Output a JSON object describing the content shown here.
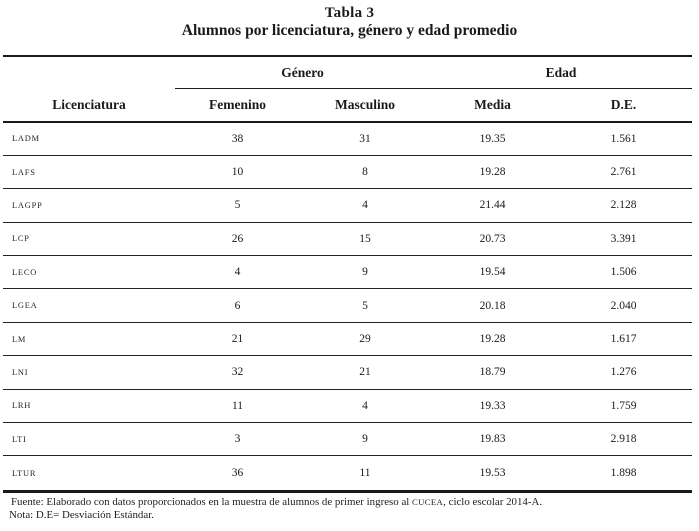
{
  "title": {
    "label": "Tabla 3",
    "subtitle": "Alumnos por licenciatura, género y edad promedio"
  },
  "table": {
    "group_headers": [
      "Género",
      "Edad"
    ],
    "columns": {
      "licenciatura": "Licenciatura",
      "femenino": "Femenino",
      "masculino": "Masculino",
      "media": "Media",
      "de": "D.E."
    },
    "rows": [
      {
        "licenciatura": "LADM",
        "femenino": "38",
        "masculino": "31",
        "media": "19.35",
        "de": "1.561"
      },
      {
        "licenciatura": "LAFS",
        "femenino": "10",
        "masculino": "8",
        "media": "19.28",
        "de": "2.761"
      },
      {
        "licenciatura": "LAGPP",
        "femenino": "5",
        "masculino": "4",
        "media": "21.44",
        "de": "2.128"
      },
      {
        "licenciatura": "LCP",
        "femenino": "26",
        "masculino": "15",
        "media": "20.73",
        "de": "3.391"
      },
      {
        "licenciatura": "LECO",
        "femenino": "4",
        "masculino": "9",
        "media": "19.54",
        "de": "1.506"
      },
      {
        "licenciatura": "LGEA",
        "femenino": "6",
        "masculino": "5",
        "media": "20.18",
        "de": "2.040"
      },
      {
        "licenciatura": "LM",
        "femenino": "21",
        "masculino": "29",
        "media": "19.28",
        "de": "1.617"
      },
      {
        "licenciatura": "LNI",
        "femenino": "32",
        "masculino": "21",
        "media": "18.79",
        "de": "1.276"
      },
      {
        "licenciatura": "LRH",
        "femenino": "11",
        "masculino": "4",
        "media": "19.33",
        "de": "1.759"
      },
      {
        "licenciatura": "LTI",
        "femenino": "3",
        "masculino": "9",
        "media": "19.83",
        "de": "2.918"
      },
      {
        "licenciatura": "LTUR",
        "femenino": "36",
        "masculino": "11",
        "media": "19.53",
        "de": "1.898"
      }
    ]
  },
  "footnotes": {
    "fuente_prefix": "Fuente: Elaborado con datos proporcionados en la muestra de alumnos de primer ingreso al ",
    "fuente_org": "CUCEA",
    "fuente_suffix": ", ciclo escolar 2014-A.",
    "nota": "Nota: D.E= Desviación Estándar."
  },
  "colors": {
    "text": "#1a1a1a",
    "rule": "#1a1a1a",
    "background": "#ffffff"
  }
}
